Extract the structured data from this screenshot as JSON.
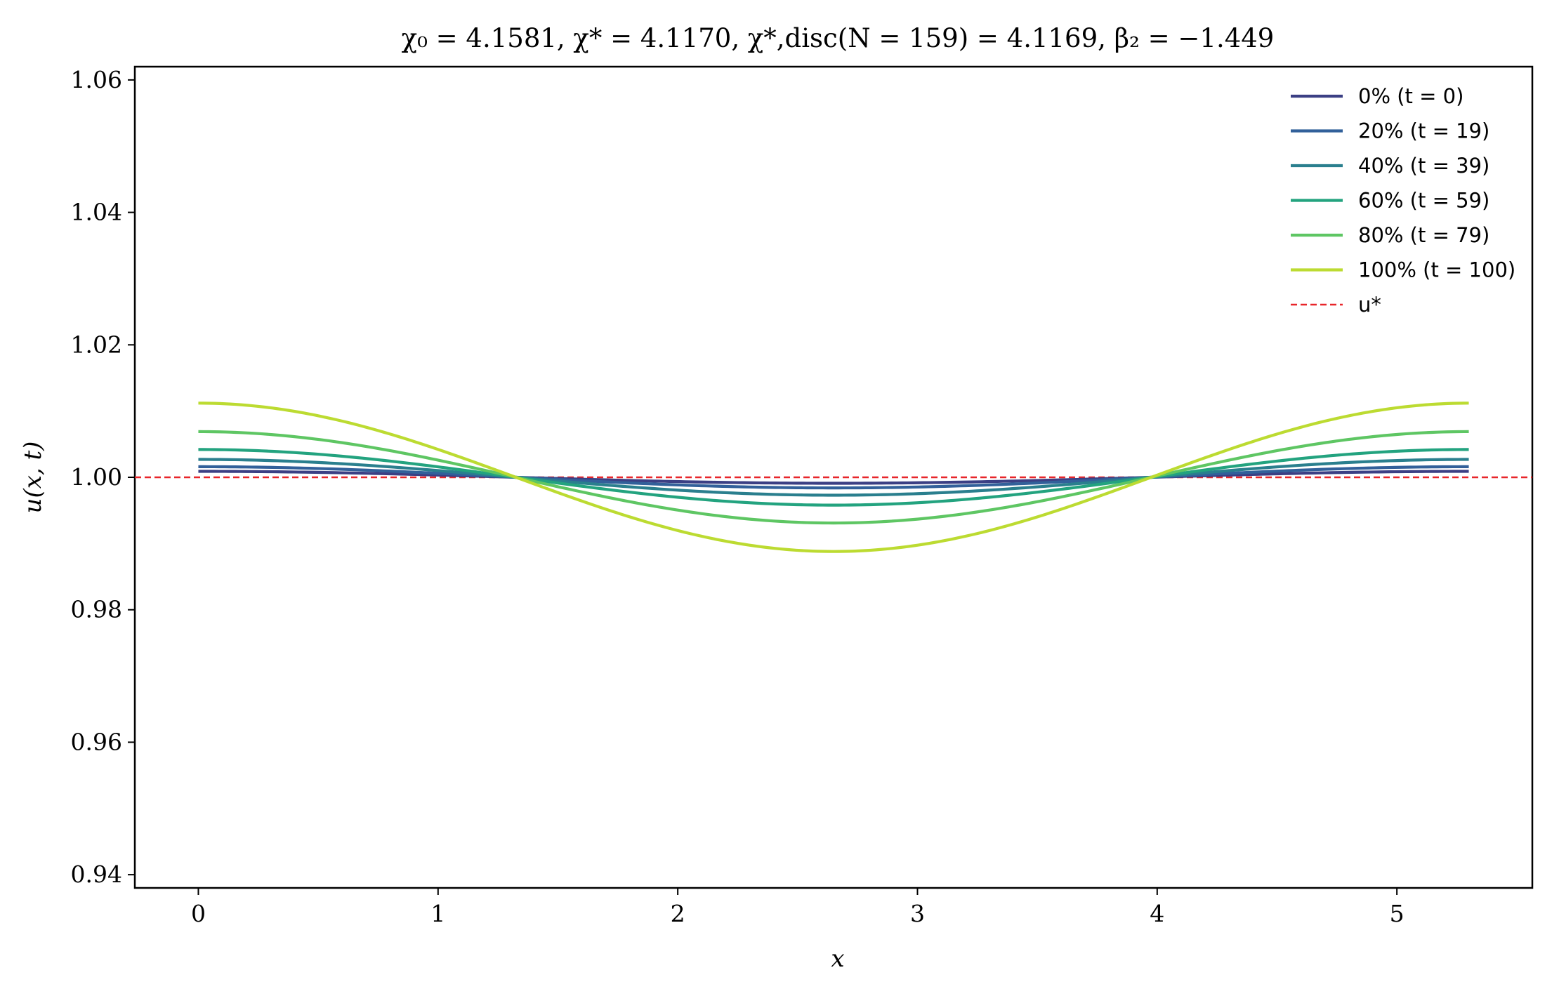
{
  "chart_data": {
    "type": "line",
    "title": "χ₀ = 4.1581,  χ* = 4.1170,  χ*,disc(N = 159) = 4.1169,  β₂ = −1.449",
    "xlabel": "x",
    "ylabel": "u(x, t)",
    "xlim": [
      -0.265,
      5.565
    ],
    "ylim": [
      0.938,
      1.062
    ],
    "xticks": [
      0,
      1,
      2,
      3,
      4,
      5
    ],
    "xtick_labels": [
      "0",
      "1",
      "2",
      "3",
      "4",
      "5"
    ],
    "yticks": [
      0.94,
      0.96,
      0.98,
      1.0,
      1.02,
      1.04,
      1.06
    ],
    "ytick_labels": [
      "0.94",
      "0.96",
      "0.98",
      "1.00",
      "1.02",
      "1.04",
      "1.06"
    ],
    "grid": false,
    "legend_position": "top-right",
    "x_domain": [
      0,
      5.3
    ],
    "series": [
      {
        "name": "0% (t = 0)",
        "color": "#3b3f84",
        "amplitude": 0.0009,
        "style": "solid"
      },
      {
        "name": "20% (t = 19)",
        "color": "#32609a",
        "amplitude": 0.0016,
        "style": "solid"
      },
      {
        "name": "40% (t = 39)",
        "color": "#2a7f8e",
        "amplitude": 0.0027,
        "style": "solid"
      },
      {
        "name": "60% (t = 59)",
        "color": "#23a37f",
        "amplitude": 0.0042,
        "style": "solid"
      },
      {
        "name": "80% (t = 79)",
        "color": "#5ec663",
        "amplitude": 0.0069,
        "style": "solid"
      },
      {
        "name": "100% (t = 100)",
        "color": "#bcdb31",
        "amplitude": 0.0112,
        "style": "solid"
      }
    ],
    "reference_line": {
      "name": "u*",
      "y": 1.0,
      "color": "#e8262a",
      "style": "dashed"
    }
  }
}
